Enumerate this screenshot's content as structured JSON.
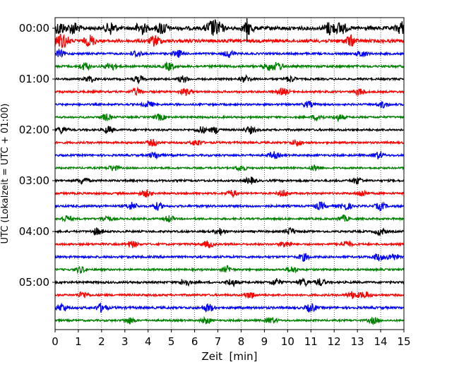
{
  "chart_data": {
    "type": "line",
    "title": "",
    "xlabel": "Zeit  [min]",
    "ylabel": "UTC (Lokalzeit = UTC + 01:00)",
    "xlim": [
      0,
      15
    ],
    "x_ticks": [
      "0",
      "1",
      "2",
      "3",
      "4",
      "5",
      "6",
      "7",
      "8",
      "9",
      "10",
      "11",
      "12",
      "13",
      "14",
      "15"
    ],
    "y_tick_labels": [
      "00:00",
      "01:00",
      "02:00",
      "03:00",
      "04:00",
      "05:00"
    ],
    "grid": "vertical dotted lines at each minute",
    "trace_interval_minutes": 15,
    "trace_count": 24,
    "colors_cycle": [
      "#000000",
      "#ff0000",
      "#0000ff",
      "#008000"
    ],
    "traces": [
      {
        "start": "00:00",
        "color": "#000000",
        "amplitude": 1.0,
        "bursts": [
          0.2,
          0.8,
          2.4,
          3.7,
          4.6,
          6.7,
          7.0,
          8.3,
          11.8,
          12.3,
          14.9
        ]
      },
      {
        "start": "00:15",
        "color": "#ff0000",
        "amplitude": 0.8,
        "bursts": [
          0.1,
          0.4,
          1.5,
          4.3,
          12.7
        ]
      },
      {
        "start": "00:30",
        "color": "#0000ff",
        "amplitude": 0.3,
        "bursts": [
          0.2,
          3.5,
          5.3,
          7.5,
          13.2
        ]
      },
      {
        "start": "00:45",
        "color": "#008000",
        "amplitude": 0.4,
        "bursts": [
          1.3,
          2.4,
          4.9,
          9.2,
          9.6
        ]
      },
      {
        "start": "01:00",
        "color": "#000000",
        "amplitude": 0.25,
        "bursts": [
          1.5,
          3.6,
          5.5,
          8.2,
          10.1
        ]
      },
      {
        "start": "01:15",
        "color": "#ff0000",
        "amplitude": 0.3,
        "bursts": [
          3.5,
          5.6,
          9.8,
          13.1
        ]
      },
      {
        "start": "01:30",
        "color": "#0000ff",
        "amplitude": 0.25,
        "bursts": [
          4.0,
          10.9,
          14.1
        ]
      },
      {
        "start": "01:45",
        "color": "#008000",
        "amplitude": 0.25,
        "bursts": [
          2.2,
          4.5,
          11.3,
          12.2
        ]
      },
      {
        "start": "02:00",
        "color": "#000000",
        "amplitude": 0.3,
        "bursts": [
          0.3,
          2.3,
          6.3,
          6.9,
          8.4
        ]
      },
      {
        "start": "02:15",
        "color": "#ff0000",
        "amplitude": 0.3,
        "bursts": [
          4.2,
          6.1,
          10.4
        ]
      },
      {
        "start": "02:30",
        "color": "#0000ff",
        "amplitude": 0.3,
        "bursts": [
          4.3,
          9.4,
          13.9
        ]
      },
      {
        "start": "02:45",
        "color": "#008000",
        "amplitude": 0.2,
        "bursts": [
          2.5,
          8.0,
          11.2
        ]
      },
      {
        "start": "03:00",
        "color": "#000000",
        "amplitude": 0.3,
        "bursts": [
          1.2,
          8.4,
          13.0
        ]
      },
      {
        "start": "03:15",
        "color": "#ff0000",
        "amplitude": 0.3,
        "bursts": [
          3.9,
          7.6,
          9.8,
          13.2
        ]
      },
      {
        "start": "03:30",
        "color": "#0000ff",
        "amplitude": 0.35,
        "bursts": [
          3.3,
          4.4,
          11.4,
          12.5,
          14.0
        ]
      },
      {
        "start": "03:45",
        "color": "#008000",
        "amplitude": 0.25,
        "bursts": [
          0.5,
          2.2,
          4.9,
          12.4
        ]
      },
      {
        "start": "04:00",
        "color": "#000000",
        "amplitude": 0.3,
        "bursts": [
          1.8,
          7.1,
          10.1,
          14.0
        ]
      },
      {
        "start": "04:15",
        "color": "#ff0000",
        "amplitude": 0.3,
        "bursts": [
          3.3,
          6.6,
          9.9,
          12.5
        ]
      },
      {
        "start": "04:30",
        "color": "#0000ff",
        "amplitude": 0.35,
        "bursts": [
          10.7,
          13.9,
          14.5
        ]
      },
      {
        "start": "04:45",
        "color": "#008000",
        "amplitude": 0.25,
        "bursts": [
          1.1,
          7.4,
          10.2
        ]
      },
      {
        "start": "05:00",
        "color": "#000000",
        "amplitude": 0.35,
        "bursts": [
          5.6,
          7.6,
          9.5,
          10.7,
          11.4
        ]
      },
      {
        "start": "05:15",
        "color": "#ff0000",
        "amplitude": 0.3,
        "bursts": [
          1.2,
          8.4,
          12.8,
          13.3
        ]
      },
      {
        "start": "05:30",
        "color": "#0000ff",
        "amplitude": 0.45,
        "bursts": [
          0.3,
          2.0,
          6.6,
          11.0
        ]
      },
      {
        "start": "05:45",
        "color": "#008000",
        "amplitude": 0.25,
        "bursts": [
          3.2,
          6.5,
          9.3,
          13.7
        ]
      }
    ]
  }
}
